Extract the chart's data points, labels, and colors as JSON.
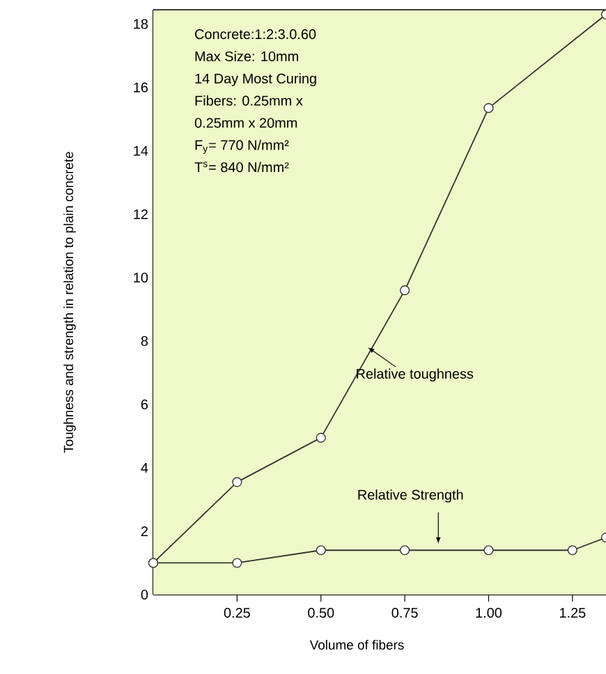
{
  "chart_data": {
    "type": "line",
    "xlabel": "Volume of fibers",
    "ylabel": "Toughness and strength in relation to plain concrete",
    "x": [
      0,
      0.25,
      0.5,
      0.75,
      1.0,
      1.35
    ],
    "series": [
      {
        "color": "#333333",
        "values": [
          1.0,
          3.55,
          4.95,
          9.6,
          15.35,
          18.3
        ]
      },
      {
        "color": "#333333",
        "x": [
          0,
          0.25,
          0.5,
          0.75,
          1.0,
          1.25,
          1.35
        ],
        "values": [
          1.0,
          1.0,
          1.4,
          1.4,
          1.4,
          1.4,
          1.8
        ]
      }
    ],
    "xlim": [
      0,
      1.35
    ],
    "ylim": [
      0,
      18.45
    ],
    "xticks": [
      {
        "value": 0.25,
        "label": "0.25"
      },
      {
        "value": 0.5,
        "label": "0.50"
      },
      {
        "value": 0.75,
        "label": "0.75"
      },
      {
        "value": 1.0,
        "label": "1.00"
      },
      {
        "value": 1.25,
        "label": "1.25"
      }
    ],
    "yticks": [
      0,
      2,
      4,
      6,
      8,
      10,
      12,
      14,
      16,
      18
    ],
    "marker": "circle",
    "line_style": "solid",
    "annotations": [
      "Concrete:1:2:3.0.60",
      "Max Size: 10mm",
      "14 Day Most Curing",
      "Fibers: 0.25mm x",
      "0.25mm x 20mm",
      "F$_{y}$= 770 N/mm²",
      "T$^{s}$= 840 N/mm²",
      {
        "text": "Relative toughness",
        "x": 0.64,
        "y": 7.8
      },
      {
        "text": "Relative Strength",
        "x": 0.85,
        "y": 1.45
      }
    ]
  }
}
